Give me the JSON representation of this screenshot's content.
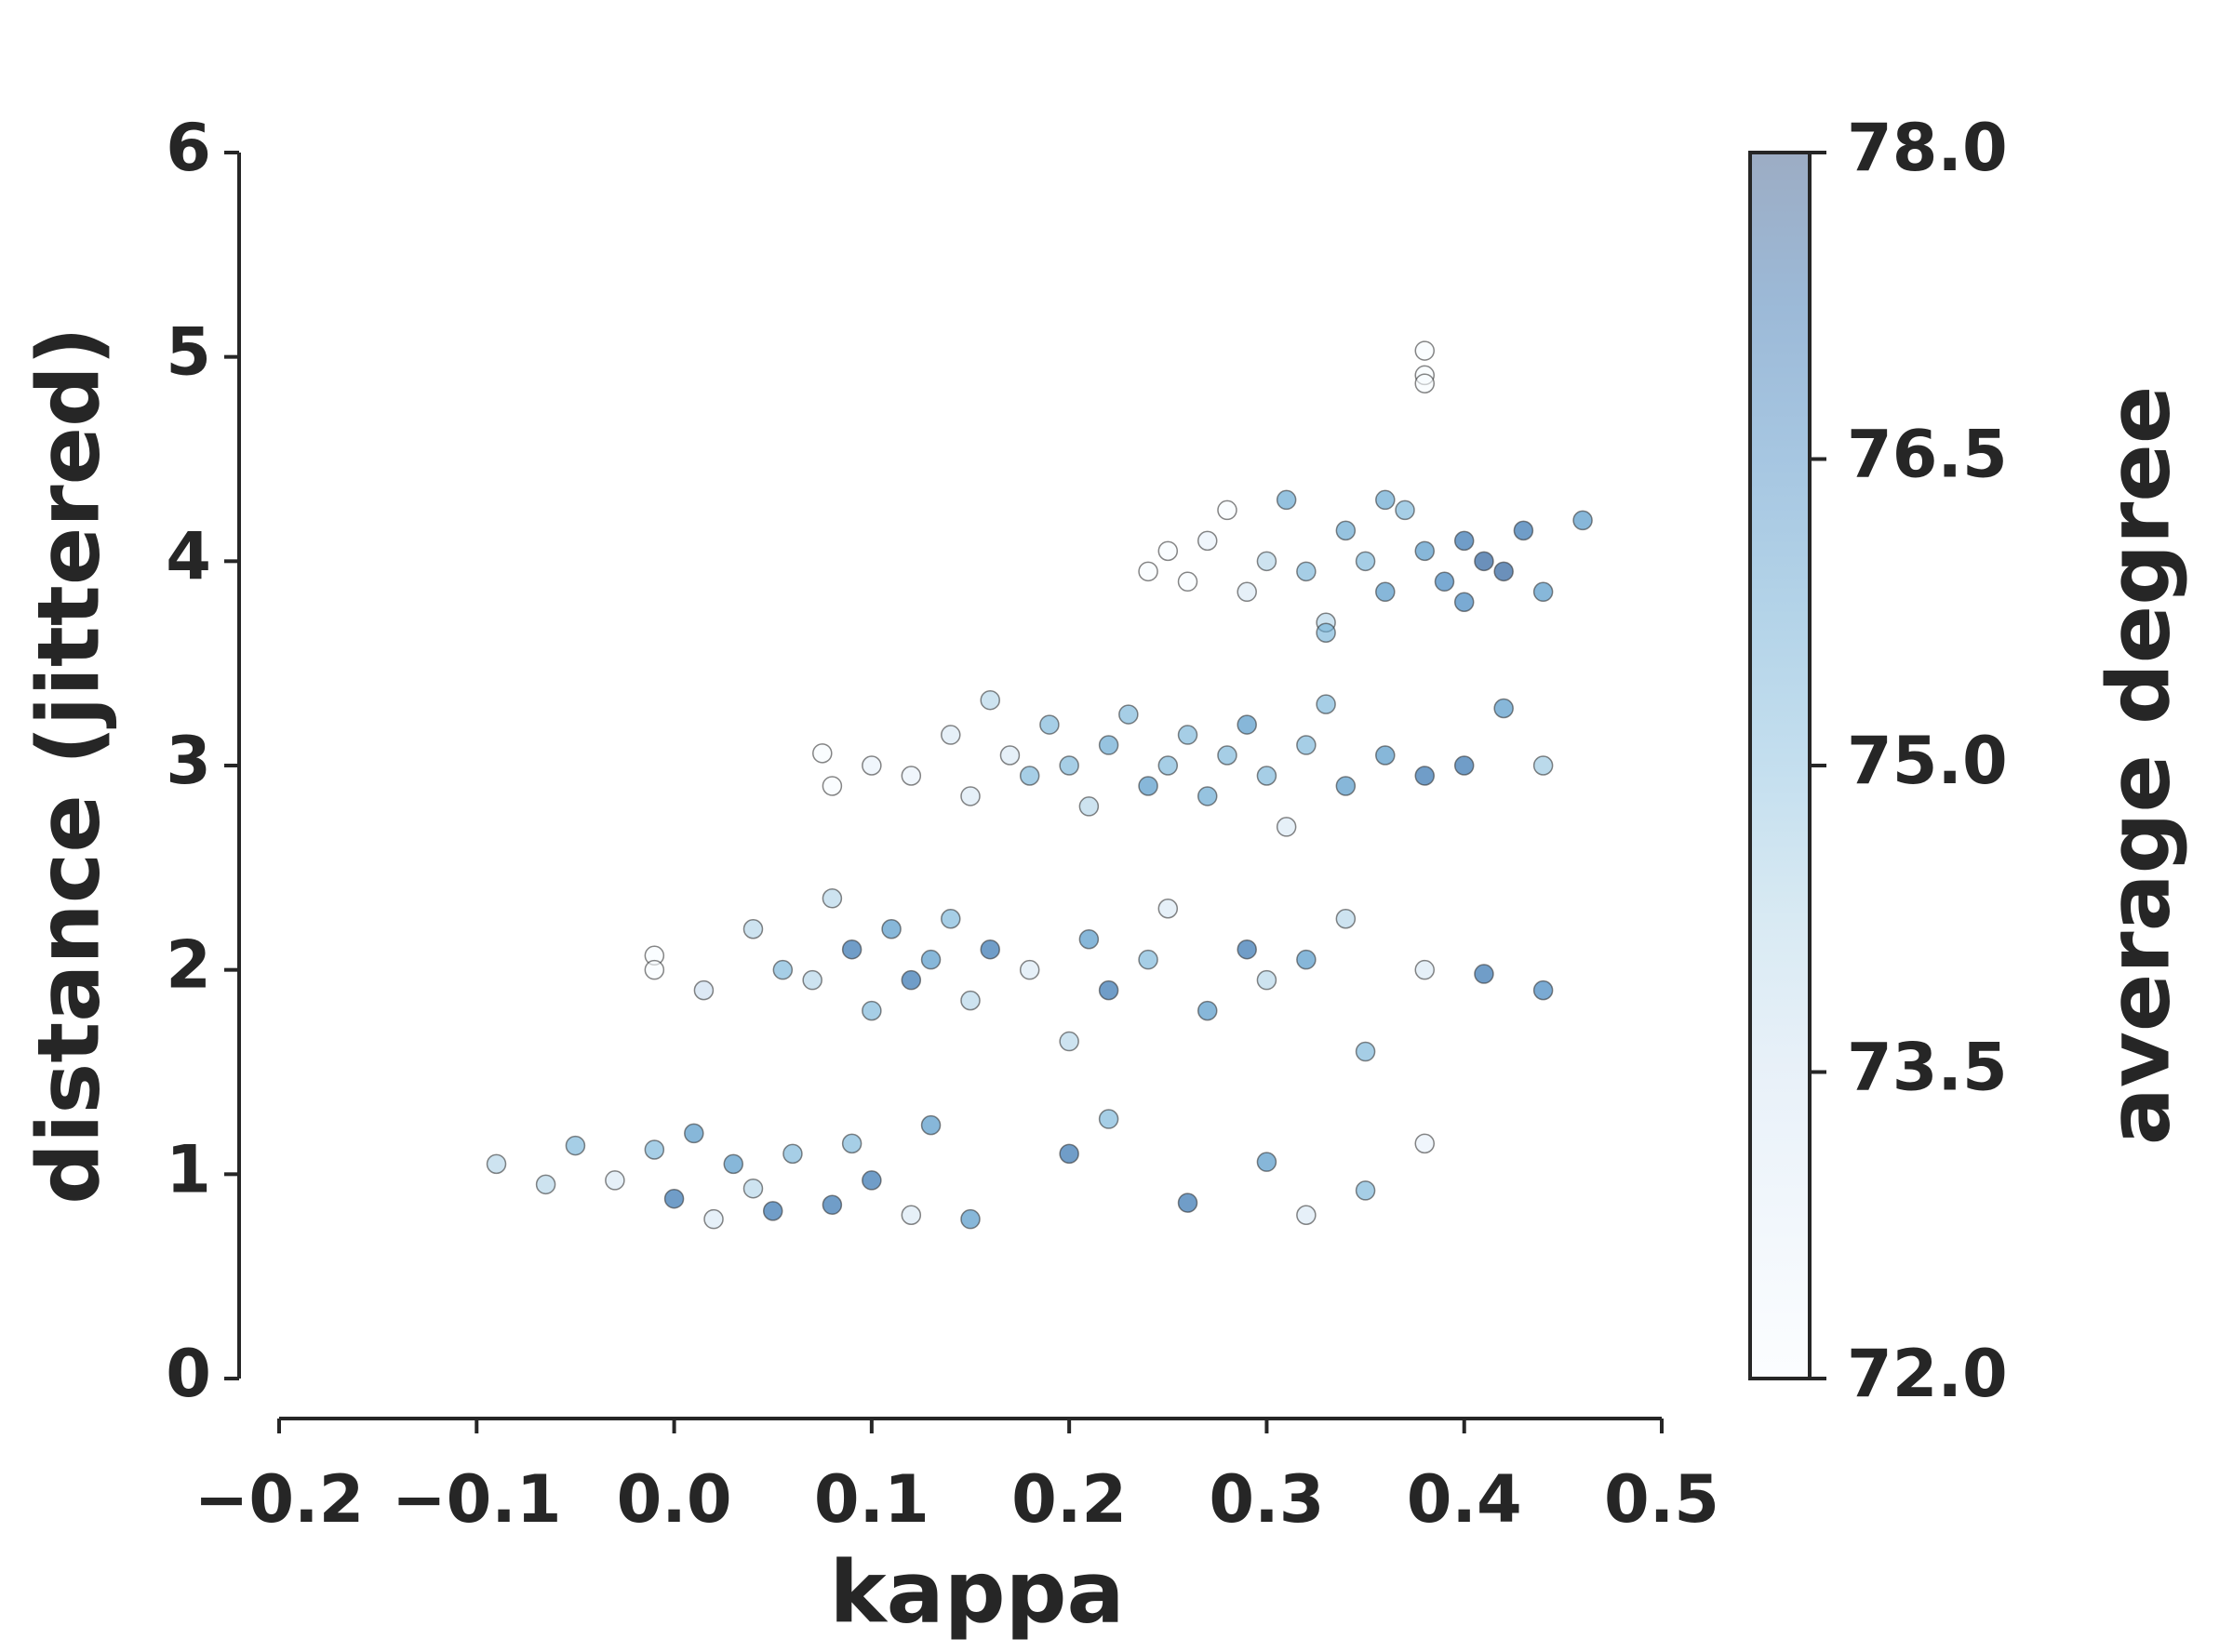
{
  "chart_data": {
    "type": "scatter",
    "x_label": "kappa",
    "y_label": "distance (jittered)",
    "colorbar_label": "average degree",
    "x": [
      -0.09,
      -0.065,
      -0.05,
      -0.03,
      -0.01,
      0.0,
      0.01,
      0.02,
      0.03,
      0.04,
      0.05,
      0.06,
      0.08,
      0.09,
      0.1,
      0.12,
      0.13,
      0.15,
      0.2,
      0.22,
      0.26,
      0.3,
      0.32,
      0.35,
      0.38,
      -0.01,
      -0.01,
      0.015,
      0.04,
      0.055,
      0.07,
      0.08,
      0.09,
      0.1,
      0.11,
      0.12,
      0.13,
      0.14,
      0.15,
      0.16,
      0.18,
      0.2,
      0.21,
      0.22,
      0.24,
      0.25,
      0.27,
      0.29,
      0.3,
      0.32,
      0.34,
      0.35,
      0.38,
      0.41,
      0.44,
      0.075,
      0.08,
      0.1,
      0.12,
      0.14,
      0.15,
      0.16,
      0.17,
      0.18,
      0.19,
      0.2,
      0.21,
      0.22,
      0.23,
      0.24,
      0.25,
      0.26,
      0.27,
      0.28,
      0.29,
      0.3,
      0.31,
      0.32,
      0.33,
      0.34,
      0.36,
      0.38,
      0.4,
      0.42,
      0.44,
      0.24,
      0.25,
      0.26,
      0.27,
      0.28,
      0.29,
      0.3,
      0.31,
      0.32,
      0.33,
      0.34,
      0.35,
      0.36,
      0.37,
      0.38,
      0.39,
      0.4,
      0.41,
      0.42,
      0.43,
      0.44,
      0.46,
      0.33,
      0.36,
      0.4,
      0.38,
      0.38,
      0.38
    ],
    "values": [
      1.05,
      0.95,
      1.14,
      0.97,
      1.12,
      0.88,
      1.2,
      0.78,
      1.05,
      0.93,
      0.82,
      1.1,
      0.85,
      1.15,
      0.97,
      0.8,
      1.24,
      0.78,
      1.1,
      1.27,
      0.86,
      1.06,
      0.8,
      0.92,
      1.15,
      2.07,
      2.0,
      1.9,
      2.2,
      2.0,
      1.95,
      2.35,
      2.1,
      1.8,
      2.2,
      1.95,
      2.05,
      2.25,
      1.85,
      2.1,
      2.0,
      1.65,
      2.15,
      1.9,
      2.05,
      2.3,
      1.8,
      2.1,
      1.95,
      2.05,
      2.25,
      1.6,
      2.0,
      1.98,
      1.9,
      3.06,
      2.9,
      3.0,
      2.95,
      3.15,
      2.85,
      3.32,
      3.05,
      2.95,
      3.2,
      3.0,
      2.8,
      3.1,
      3.25,
      2.9,
      3.0,
      3.15,
      2.85,
      3.05,
      3.2,
      2.95,
      2.7,
      3.1,
      3.3,
      2.9,
      3.05,
      2.95,
      3.0,
      3.28,
      3.0,
      3.95,
      4.05,
      3.9,
      4.1,
      4.25,
      3.85,
      4.0,
      4.3,
      3.95,
      3.7,
      4.15,
      4.0,
      3.85,
      4.25,
      4.05,
      3.9,
      4.1,
      4.0,
      3.95,
      4.15,
      3.85,
      4.2,
      3.65,
      4.3,
      3.8,
      5.03,
      4.91,
      4.87
    ],
    "color_values": [
      74,
      74,
      75,
      73,
      75,
      77,
      76,
      73,
      76,
      74,
      77,
      75,
      77,
      75,
      77,
      73,
      76,
      76,
      77,
      75,
      77,
      76,
      73,
      75,
      72.5,
      72,
      72,
      73.5,
      74,
      75,
      74,
      74,
      77,
      75,
      76,
      77,
      76,
      75,
      74,
      77,
      73,
      74,
      76,
      77,
      75,
      73,
      76,
      77,
      74,
      76,
      74,
      75,
      73,
      77,
      76.5,
      72,
      72,
      72.5,
      72.5,
      73,
      73,
      74,
      73,
      75,
      75,
      75,
      74,
      75.5,
      75,
      76,
      75,
      75,
      75.5,
      75,
      76,
      75,
      73,
      75,
      75,
      76,
      76,
      77,
      77,
      76,
      74.5,
      72,
      72,
      72,
      72.5,
      72,
      73,
      74,
      75.5,
      75,
      74,
      75.5,
      75,
      76,
      75,
      76,
      76.5,
      77,
      77.5,
      77.5,
      77,
      76,
      76,
      75,
      75.5,
      76.5,
      72,
      72,
      72
    ],
    "colormap": "Blues",
    "xlim": [
      -0.2,
      0.5
    ],
    "xticks": [
      {
        "value": -0.2,
        "label": "−0.2"
      },
      {
        "value": -0.1,
        "label": "−0.1"
      },
      {
        "value": 0,
        "label": "0.0"
      },
      {
        "value": 0.1,
        "label": "0.1"
      },
      {
        "value": 0.2,
        "label": "0.2"
      },
      {
        "value": 0.3,
        "label": "0.3"
      },
      {
        "value": 0.4,
        "label": "0.4"
      },
      {
        "value": 0.5,
        "label": "0.5"
      }
    ],
    "ylim": [
      0,
      6
    ],
    "yticks": [
      0,
      1,
      2,
      3,
      4,
      5,
      6
    ],
    "clim": [
      72,
      78
    ],
    "cticks": [
      {
        "value": 72,
        "label": "72.0"
      },
      73.5,
      {
        "value": 75,
        "label": "75.0"
      },
      76.5,
      {
        "value": 78,
        "label": "78.0"
      }
    ]
  }
}
